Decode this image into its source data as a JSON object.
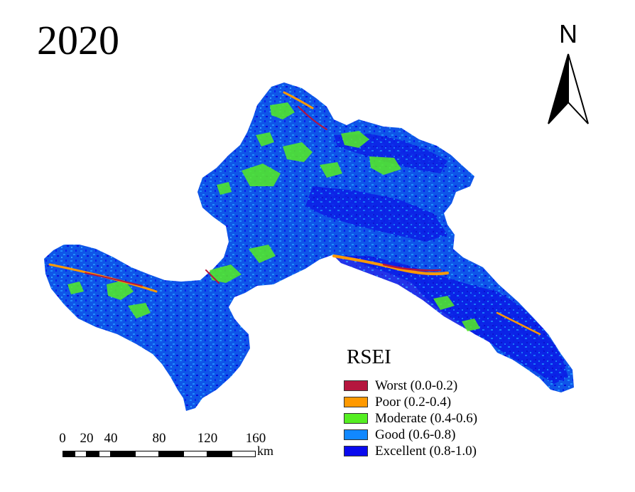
{
  "title": "2020",
  "north_arrow": {
    "letter": "N"
  },
  "legend": {
    "title": "RSEI",
    "items": [
      {
        "label": "Worst (0.0-0.2)",
        "color": "#b5163e"
      },
      {
        "label": "Poor (0.2-0.4)",
        "color": "#ff9900"
      },
      {
        "label": "Moderate (0.4-0.6)",
        "color": "#55ee22"
      },
      {
        "label": "Good (0.6-0.8)",
        "color": "#1188ff"
      },
      {
        "label": "Excellent (0.8-1.0)",
        "color": "#0a0aee"
      }
    ]
  },
  "scale_bar": {
    "ticks": [
      "0",
      "20",
      "40",
      "80",
      "120",
      "160"
    ],
    "tick_values": [
      0,
      20,
      40,
      80,
      120,
      160
    ],
    "unit": "km"
  }
}
